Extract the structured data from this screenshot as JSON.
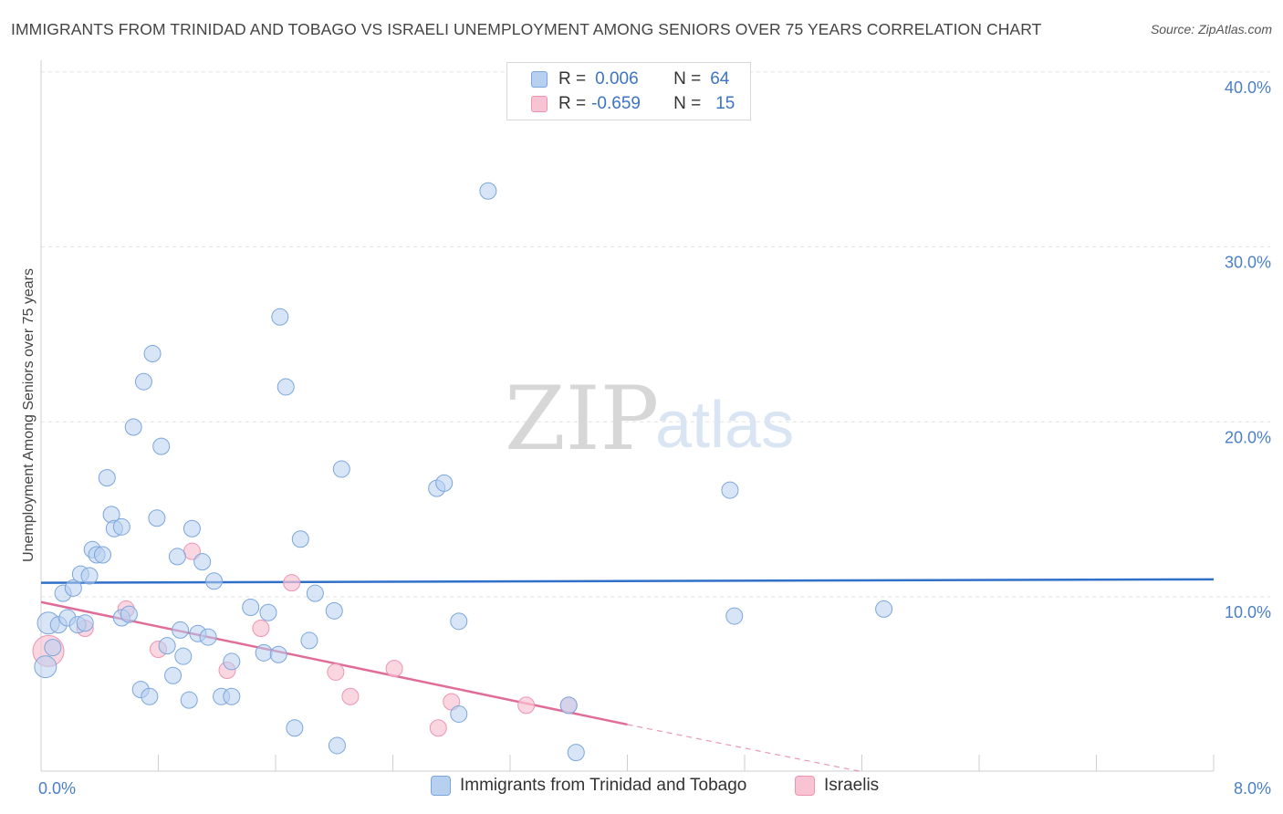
{
  "title": "IMMIGRANTS FROM TRINIDAD AND TOBAGO VS ISRAELI UNEMPLOYMENT AMONG SENIORS OVER 75 YEARS CORRELATION CHART",
  "source": "Source: ZipAtlas.com",
  "watermark": {
    "zip": "ZIP",
    "atlas": "atlas"
  },
  "colors": {
    "blue_fill": "#b8d0f0",
    "blue_stroke": "#7aa6dc",
    "blue_line": "#3070c8",
    "pink_fill": "#f8c4d4",
    "pink_stroke": "#ee94b2",
    "pink_line": "#e06c98",
    "grid": "#e2e2e2",
    "tick": "#4a7fc9"
  },
  "legend": {
    "series1": {
      "r_label": "R =",
      "r_value": "0.006",
      "n_label": "N =",
      "n_value": "64"
    },
    "series2": {
      "r_label": "R =",
      "r_value": "-0.659",
      "n_label": "N =",
      "n_value": "15"
    }
  },
  "bottom_legend": {
    "series1": "Immigrants from Trinidad and Tobago",
    "series2": "Israelis"
  },
  "chart_data": {
    "type": "scatter",
    "title": "IMMIGRANTS FROM TRINIDAD AND TOBAGO VS ISRAELI UNEMPLOYMENT AMONG SENIORS OVER 75 YEARS CORRELATION CHART",
    "xlabel": "",
    "ylabel": "Unemployment Among Seniors over 75 years",
    "xlim": [
      0,
      8
    ],
    "ylim": [
      0,
      40
    ],
    "x_tick_labels": [
      "0.0%",
      "8.0%"
    ],
    "y_ticks": [
      10,
      20,
      30,
      40
    ],
    "y_tick_labels": [
      "10.0%",
      "20.0%",
      "30.0%",
      "40.0%"
    ],
    "grid": true,
    "legend_position": "top-center",
    "series": [
      {
        "name": "Immigrants from Trinidad and Tobago",
        "color": "blue",
        "trend": {
          "x": [
            0,
            8
          ],
          "y": [
            10.8,
            11.0
          ]
        },
        "points": [
          {
            "x": 0.03,
            "y": 6.0
          },
          {
            "x": 0.05,
            "y": 8.5
          },
          {
            "x": 0.08,
            "y": 7.1
          },
          {
            "x": 0.12,
            "y": 8.4
          },
          {
            "x": 0.15,
            "y": 10.2
          },
          {
            "x": 0.18,
            "y": 8.8
          },
          {
            "x": 0.22,
            "y": 10.5
          },
          {
            "x": 0.25,
            "y": 8.4
          },
          {
            "x": 0.27,
            "y": 11.3
          },
          {
            "x": 0.3,
            "y": 8.5
          },
          {
            "x": 0.33,
            "y": 11.2
          },
          {
            "x": 0.35,
            "y": 12.7
          },
          {
            "x": 0.38,
            "y": 12.4
          },
          {
            "x": 0.42,
            "y": 12.4
          },
          {
            "x": 0.45,
            "y": 16.8
          },
          {
            "x": 0.48,
            "y": 14.7
          },
          {
            "x": 0.5,
            "y": 13.9
          },
          {
            "x": 0.55,
            "y": 14.0
          },
          {
            "x": 0.55,
            "y": 8.8
          },
          {
            "x": 0.6,
            "y": 9.0
          },
          {
            "x": 0.63,
            "y": 19.7
          },
          {
            "x": 0.68,
            "y": 4.7
          },
          {
            "x": 0.7,
            "y": 22.3
          },
          {
            "x": 0.74,
            "y": 4.3
          },
          {
            "x": 0.76,
            "y": 23.9
          },
          {
            "x": 0.79,
            "y": 14.5
          },
          {
            "x": 0.82,
            "y": 18.6
          },
          {
            "x": 0.86,
            "y": 7.2
          },
          {
            "x": 0.9,
            "y": 5.5
          },
          {
            "x": 0.93,
            "y": 12.3
          },
          {
            "x": 0.95,
            "y": 8.1
          },
          {
            "x": 0.97,
            "y": 6.6
          },
          {
            "x": 1.01,
            "y": 4.1
          },
          {
            "x": 1.03,
            "y": 13.9
          },
          {
            "x": 1.07,
            "y": 7.9
          },
          {
            "x": 1.1,
            "y": 12.0
          },
          {
            "x": 1.14,
            "y": 7.7
          },
          {
            "x": 1.18,
            "y": 10.9
          },
          {
            "x": 1.23,
            "y": 4.3
          },
          {
            "x": 1.3,
            "y": 6.3
          },
          {
            "x": 1.3,
            "y": 4.3
          },
          {
            "x": 1.43,
            "y": 9.4
          },
          {
            "x": 1.52,
            "y": 6.8
          },
          {
            "x": 1.55,
            "y": 9.1
          },
          {
            "x": 1.62,
            "y": 6.7
          },
          {
            "x": 1.63,
            "y": 26.0
          },
          {
            "x": 1.67,
            "y": 22.0
          },
          {
            "x": 1.73,
            "y": 2.5
          },
          {
            "x": 1.77,
            "y": 13.3
          },
          {
            "x": 1.83,
            "y": 7.5
          },
          {
            "x": 1.87,
            "y": 10.2
          },
          {
            "x": 2.0,
            "y": 9.2
          },
          {
            "x": 2.02,
            "y": 1.5
          },
          {
            "x": 2.05,
            "y": 17.3
          },
          {
            "x": 2.7,
            "y": 16.2
          },
          {
            "x": 2.75,
            "y": 16.5
          },
          {
            "x": 2.85,
            "y": 3.3
          },
          {
            "x": 2.85,
            "y": 8.6
          },
          {
            "x": 3.05,
            "y": 33.2
          },
          {
            "x": 3.6,
            "y": 3.8
          },
          {
            "x": 3.65,
            "y": 1.1
          },
          {
            "x": 4.7,
            "y": 16.1
          },
          {
            "x": 4.73,
            "y": 8.9
          },
          {
            "x": 5.75,
            "y": 9.3
          }
        ]
      },
      {
        "name": "Israelis",
        "color": "pink",
        "trend": {
          "x": [
            0,
            4.0
          ],
          "y": [
            9.7,
            2.7
          ]
        },
        "trend_dashed": {
          "x": [
            4.0,
            5.6
          ],
          "y": [
            2.7,
            0
          ]
        },
        "points": [
          {
            "x": 0.05,
            "y": 6.9
          },
          {
            "x": 0.3,
            "y": 8.2
          },
          {
            "x": 0.58,
            "y": 9.3
          },
          {
            "x": 0.8,
            "y": 7.0
          },
          {
            "x": 1.03,
            "y": 12.6
          },
          {
            "x": 1.27,
            "y": 5.8
          },
          {
            "x": 1.5,
            "y": 8.2
          },
          {
            "x": 1.71,
            "y": 10.8
          },
          {
            "x": 2.01,
            "y": 5.7
          },
          {
            "x": 2.11,
            "y": 4.3
          },
          {
            "x": 2.41,
            "y": 5.9
          },
          {
            "x": 2.71,
            "y": 2.5
          },
          {
            "x": 2.8,
            "y": 4.0
          },
          {
            "x": 3.31,
            "y": 3.8
          },
          {
            "x": 3.6,
            "y": 3.8
          }
        ]
      }
    ]
  }
}
